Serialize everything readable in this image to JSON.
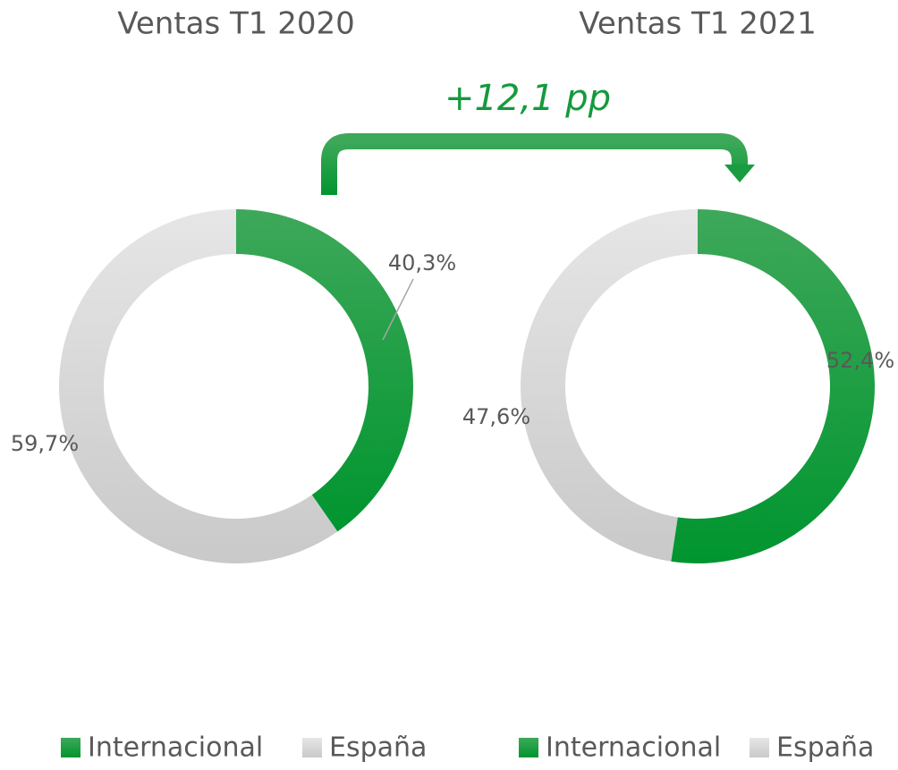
{
  "chart_data": [
    {
      "type": "pie",
      "title": "Ventas T1 2020",
      "categories": [
        "Internacional",
        "España"
      ],
      "values": [
        40.3,
        59.7
      ],
      "value_labels": [
        "40,3%",
        "59,7%"
      ],
      "colors": [
        "#109a3c",
        "#d6d6d6"
      ]
    },
    {
      "type": "pie",
      "title": "Ventas T1 2021",
      "categories": [
        "Internacional",
        "España"
      ],
      "values": [
        52.4,
        47.6
      ],
      "value_labels": [
        "52,4%",
        "47,6%"
      ],
      "colors": [
        "#109a3c",
        "#d6d6d6"
      ],
      "annotation": "+12,1 pp"
    }
  ]
}
